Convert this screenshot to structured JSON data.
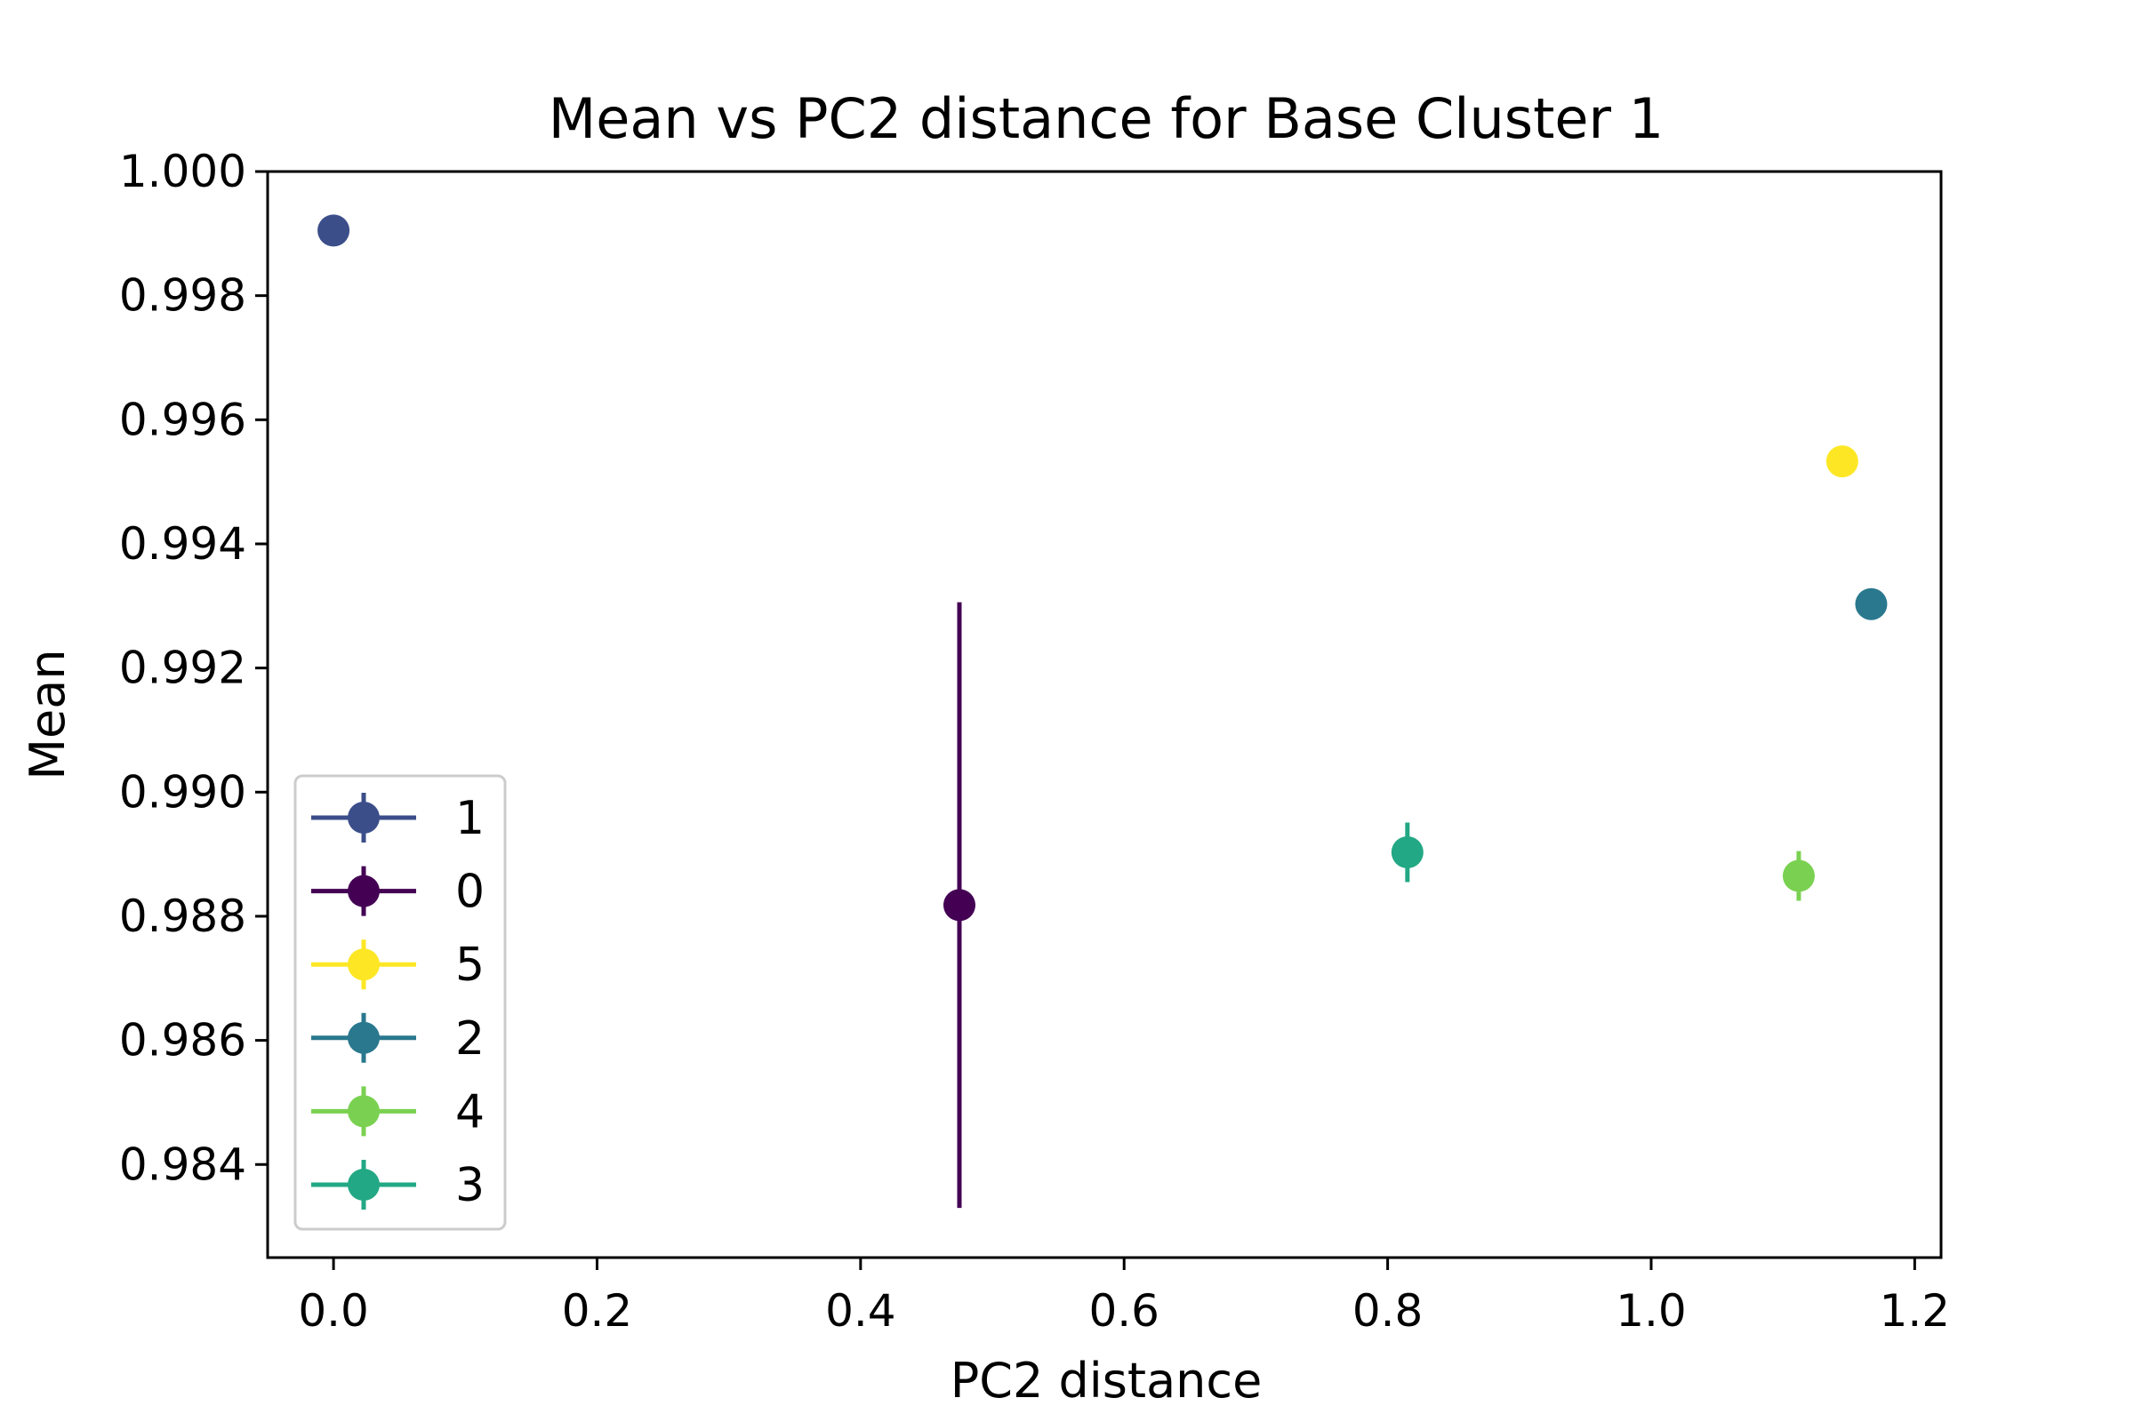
{
  "chart_data": {
    "type": "scatter",
    "title": "Mean vs PC2 distance for Base Cluster 1",
    "xlabel": "PC2 distance",
    "ylabel": "Mean",
    "xlim": [
      -0.05,
      1.22
    ],
    "ylim": [
      0.9825,
      1.0
    ],
    "x_ticks": [
      "0.0",
      "0.2",
      "0.4",
      "0.6",
      "0.8",
      "1.0",
      "1.2"
    ],
    "y_ticks": [
      "1.000",
      "0.998",
      "0.996",
      "0.994",
      "0.992",
      "0.990",
      "0.988",
      "0.986",
      "0.984"
    ],
    "grid": false,
    "legend_position": "lower-left",
    "series": [
      {
        "name": "1",
        "color": "#3b4e8a",
        "x": 0.0,
        "y": 0.99905,
        "err": 0.0
      },
      {
        "name": "0",
        "color": "#440154",
        "x": 0.475,
        "y": 0.98818,
        "err": 0.00488
      },
      {
        "name": "5",
        "color": "#fde725",
        "x": 1.145,
        "y": 0.99533,
        "err": 0.0
      },
      {
        "name": "2",
        "color": "#2a788e",
        "x": 1.167,
        "y": 0.99303,
        "err": 0.0
      },
      {
        "name": "4",
        "color": "#7ad151",
        "x": 1.112,
        "y": 0.98865,
        "err": 0.0004
      },
      {
        "name": "3",
        "color": "#22a884",
        "x": 0.815,
        "y": 0.98903,
        "err": 0.00048
      }
    ]
  }
}
